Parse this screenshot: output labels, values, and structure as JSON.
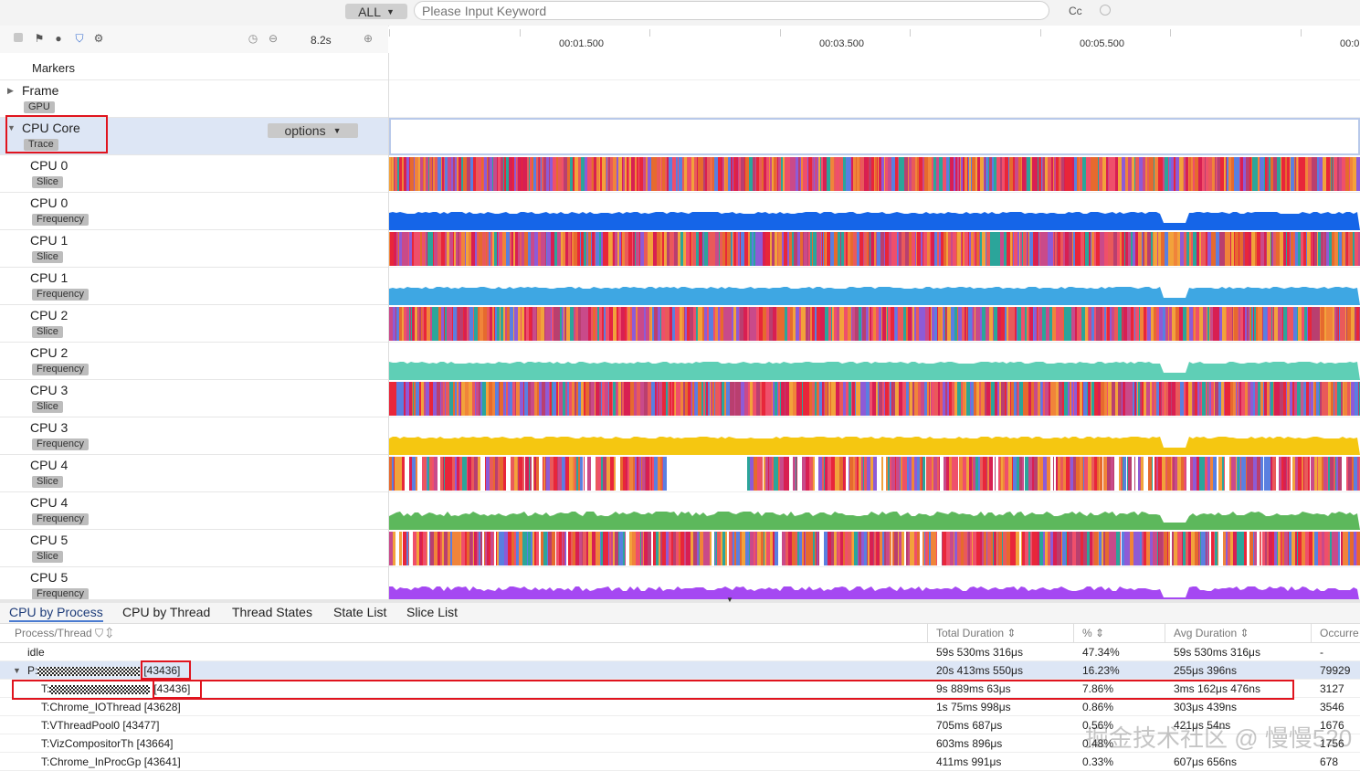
{
  "search": {
    "filter_label": "ALL",
    "placeholder": "Please Input Keyword",
    "case_label": "Cc"
  },
  "toolbar": {
    "zoom": "8.2s"
  },
  "ruler": {
    "ticks": [
      "00:01.500",
      "00:03.500",
      "00:05.500",
      "00:0"
    ]
  },
  "left_rows": [
    {
      "name": "Markers",
      "tag": ""
    },
    {
      "name": "Frame",
      "tag": "GPU"
    },
    {
      "name": "CPU Core",
      "tag": "Trace"
    },
    {
      "name": "CPU 0",
      "tag": "Slice"
    },
    {
      "name": "CPU 0",
      "tag": "Frequency"
    },
    {
      "name": "CPU 1",
      "tag": "Slice"
    },
    {
      "name": "CPU 1",
      "tag": "Frequency"
    },
    {
      "name": "CPU 2",
      "tag": "Slice"
    },
    {
      "name": "CPU 2",
      "tag": "Frequency"
    },
    {
      "name": "CPU 3",
      "tag": "Slice"
    },
    {
      "name": "CPU 3",
      "tag": "Frequency"
    },
    {
      "name": "CPU 4",
      "tag": "Slice"
    },
    {
      "name": "CPU 4",
      "tag": "Frequency"
    },
    {
      "name": "CPU 5",
      "tag": "Slice"
    },
    {
      "name": "CPU 5",
      "tag": "Frequency"
    }
  ],
  "options_label": "options",
  "colors": {
    "cpu0_freq": "#1565e8",
    "cpu1_freq": "#3ea7e3",
    "cpu2_freq": "#5fcfb6",
    "cpu3_freq": "#f5c711",
    "cpu4_freq": "#5db85c",
    "cpu5_freq": "#a548f2",
    "highlight": "#e0141e"
  },
  "tabs": [
    "CPU by Process",
    "CPU by Thread",
    "Thread States",
    "State List",
    "Slice List"
  ],
  "table": {
    "headers": [
      "Process/Thread",
      "Total Duration",
      "%",
      "Avg Duration",
      "Occurre"
    ],
    "rows": [
      {
        "name": "idle",
        "total": "59s 530ms 316μs",
        "pct": "47.34%",
        "avg": "59s 530ms 316μs",
        "occ": "-"
      },
      {
        "name": "P:",
        "pid": "[43436]",
        "total": "20s 413ms 550μs",
        "pct": "16.23%",
        "avg": "255μs 396ns",
        "occ": "79929"
      },
      {
        "name": "T:",
        "pid": "[43436]",
        "total": "9s 889ms 63μs",
        "pct": "7.86%",
        "avg": "3ms 162μs 476ns",
        "occ": "3127"
      },
      {
        "name": "T:Chrome_IOThread [43628]",
        "total": "1s 75ms 998μs",
        "pct": "0.86%",
        "avg": "303μs 439ns",
        "occ": "3546"
      },
      {
        "name": "T:VThreadPool0 [43477]",
        "total": "705ms 687μs",
        "pct": "0.56%",
        "avg": "421μs 54ns",
        "occ": "1676"
      },
      {
        "name": "T:VizCompositorTh [43664]",
        "total": "603ms 896μs",
        "pct": "0.48%",
        "avg": "",
        "occ": "1756"
      },
      {
        "name": "T:Chrome_InProcGp [43641]",
        "total": "411ms 991μs",
        "pct": "0.33%",
        "avg": "607μs 656ns",
        "occ": "678"
      }
    ]
  },
  "watermark": "掘金技术社区 @ 慢慢520"
}
